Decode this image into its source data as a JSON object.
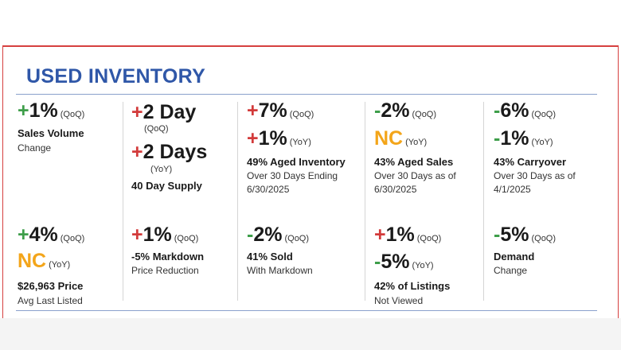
{
  "title": "USED INVENTORY",
  "colors": {
    "title": "#2f57a8",
    "up": "#d23a3a",
    "down": "#3e9e4a",
    "nc": "#f3a51a",
    "frame": "#d6403f"
  },
  "c1": {
    "m1_sign": "+",
    "m1_val": "1%",
    "m1_unit": "(QoQ)",
    "label": "Sales Volume",
    "sub": "Change",
    "m2_sign": "+",
    "m2_val": "4%",
    "m2_unit": "(QoQ)",
    "m3_val": "NC",
    "m3_unit": "(YoY)",
    "label2": "$26,963 Price",
    "sub2": "Avg Last Listed"
  },
  "c2": {
    "m1_sign": "+",
    "m1_val": "2 Day",
    "m1_unit": "(QoQ)",
    "m2_sign": "+",
    "m2_val": "2 Days",
    "m2_unit": "(YoY)",
    "label": "40 Day Supply",
    "m3_sign": "+",
    "m3_val": "1%",
    "m3_unit": "(QoQ)",
    "label2": "-5% Markdown",
    "sub2": "Price Reduction"
  },
  "c3": {
    "m1_sign": "+",
    "m1_val": "7%",
    "m1_unit": "(QoQ)",
    "m2_sign": "+",
    "m2_val": "1%",
    "m2_unit": "(YoY)",
    "label": "49% Aged Inventory",
    "sub_a": "Over 30 Days Ending",
    "sub_b": "6/30/2025",
    "m3_sign": "-",
    "m3_val": "2%",
    "m3_unit": "(QoQ)",
    "label2": "41% Sold",
    "sub2": "With Markdown"
  },
  "c4": {
    "m1_sign": "-",
    "m1_val": "2%",
    "m1_unit": "(QoQ)",
    "m2_val": "NC",
    "m2_unit": "(YoY)",
    "label": "43% Aged Sales",
    "sub_a": "Over 30 Days as of",
    "sub_b": "6/30/2025",
    "m3_sign": "+",
    "m3_val": "1%",
    "m3_unit": "(QoQ)",
    "m4_sign": "-",
    "m4_val": "5%",
    "m4_unit": "(YoY)",
    "label2": "42% of Listings",
    "sub2": "Not Viewed"
  },
  "c5": {
    "m1_sign": "-",
    "m1_val": "6%",
    "m1_unit": "(QoQ)",
    "m2_sign": "-",
    "m2_val": "1%",
    "m2_unit": "(YoY)",
    "label": "43% Carryover",
    "sub_a": "Over 30 Days as of",
    "sub_b": "4/1/2025",
    "m3_sign": "-",
    "m3_val": "5%",
    "m3_unit": "(QoQ)",
    "label2": "Demand",
    "sub2": "Change"
  }
}
